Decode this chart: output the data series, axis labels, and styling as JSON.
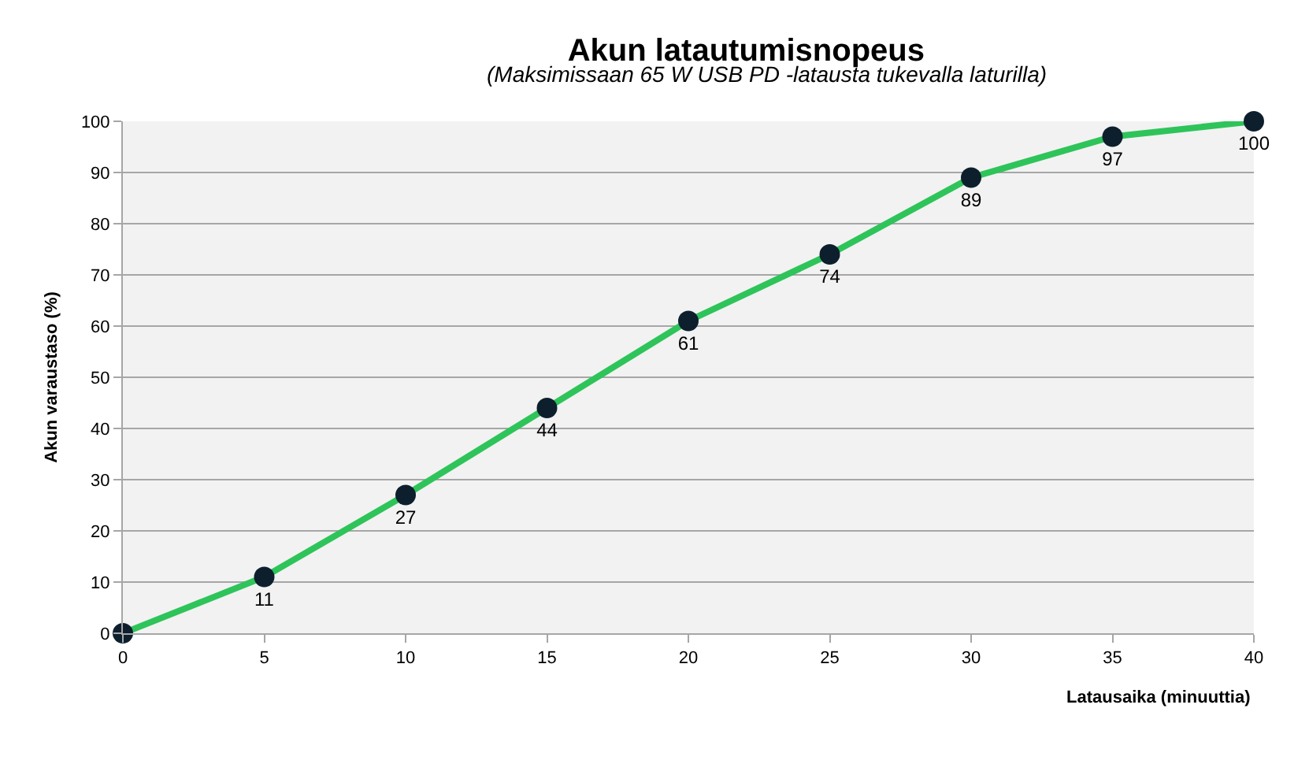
{
  "chart_data": {
    "type": "line",
    "title": "Akun latautumisnopeus",
    "subtitle": "(Maksimissaan 65 W USB PD -latausta tukevalla laturilla)",
    "xlabel": "Latausaika (minuuttia)",
    "ylabel": "Akun varaustaso (%)",
    "x": [
      0,
      5,
      10,
      15,
      20,
      25,
      30,
      35,
      40
    ],
    "series": [
      {
        "color": "#2ec45a",
        "values": [
          0,
          11,
          27,
          44,
          61,
          74,
          89,
          97,
          100
        ],
        "value_labels": [
          null,
          "11",
          "27",
          "44",
          "61",
          "74",
          "89",
          "97",
          "100"
        ]
      }
    ],
    "xlim": [
      0,
      40
    ],
    "xticks": [
      0,
      5,
      10,
      15,
      20,
      25,
      30,
      35,
      40
    ],
    "ylim": [
      0,
      100
    ],
    "yticks": [
      0,
      10,
      20,
      30,
      40,
      50,
      60,
      70,
      80,
      90,
      100
    ],
    "grid": "y",
    "legend": false,
    "marker": "circle",
    "line_style": "solid"
  }
}
